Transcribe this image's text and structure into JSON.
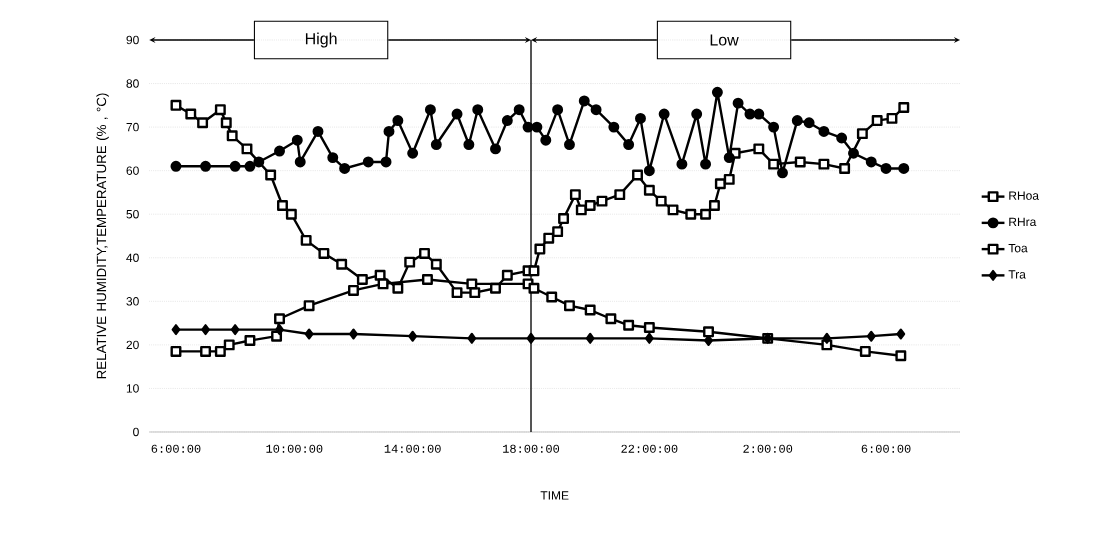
{
  "chart_data": {
    "type": "line",
    "xlabel": "TIME",
    "ylabel": "RELATIVE HUMIDITY,TEMPERATURE (% , °C)",
    "xlim": [
      "2000-01-01T05:06",
      "2000-01-02T08:30"
    ],
    "ylim": [
      0,
      90
    ],
    "xticks": [
      {
        "value": "2000-01-01T06:00",
        "label": "6:00:00"
      },
      {
        "value": "2000-01-01T10:00",
        "label": "10:00:00"
      },
      {
        "value": "2000-01-01T14:00",
        "label": "14:00:00"
      },
      {
        "value": "2000-01-01T18:00",
        "label": "18:00:00"
      },
      {
        "value": "2000-01-01T22:00",
        "label": "22:00:00"
      },
      {
        "value": "2000-01-02T02:00",
        "label": "2:00:00"
      },
      {
        "value": "2000-01-02T06:00",
        "label": "6:00:00"
      }
    ],
    "yticks": [
      0,
      10,
      20,
      30,
      40,
      50,
      60,
      70,
      80,
      90
    ],
    "grid": "y",
    "legend": "right",
    "line_style": "solid",
    "ref_lines": [
      {
        "axis": "x",
        "value": "2000-01-01T18:00",
        "color": "#000000"
      }
    ],
    "annotations": [
      "High",
      "Low"
    ],
    "series": [
      {
        "name": "RHoa",
        "color": "#000000",
        "marker": "square",
        "x": [
          "2000-01-01T06:00",
          "2000-01-01T06:30",
          "2000-01-01T06:54",
          "2000-01-01T07:30",
          "2000-01-01T07:42",
          "2000-01-01T07:54",
          "2000-01-01T08:24",
          "2000-01-01T09:12",
          "2000-01-01T09:36",
          "2000-01-01T09:54",
          "2000-01-01T10:24",
          "2000-01-01T11:00",
          "2000-01-01T11:36",
          "2000-01-01T12:18",
          "2000-01-01T12:54",
          "2000-01-01T13:30",
          "2000-01-01T13:54",
          "2000-01-01T14:24",
          "2000-01-01T14:48",
          "2000-01-01T15:30",
          "2000-01-01T16:06",
          "2000-01-01T16:48",
          "2000-01-01T17:12",
          "2000-01-01T17:54",
          "2000-01-01T18:06",
          "2000-01-01T18:18",
          "2000-01-01T18:36",
          "2000-01-01T18:54",
          "2000-01-01T19:06",
          "2000-01-01T19:30",
          "2000-01-01T19:42",
          "2000-01-01T20:00",
          "2000-01-01T20:24",
          "2000-01-01T21:00",
          "2000-01-01T21:36",
          "2000-01-01T22:00",
          "2000-01-01T22:24",
          "2000-01-01T22:48",
          "2000-01-01T23:24",
          "2000-01-01T23:54",
          "2000-01-02T00:12",
          "2000-01-02T00:24",
          "2000-01-02T00:42",
          "2000-01-02T00:54",
          "2000-01-02T01:42",
          "2000-01-02T02:12",
          "2000-01-02T03:06",
          "2000-01-02T03:54",
          "2000-01-02T04:36",
          "2000-01-02T05:12",
          "2000-01-02T05:42",
          "2000-01-02T06:12",
          "2000-01-02T06:36"
        ],
        "values": [
          75,
          73,
          71,
          74,
          71,
          68,
          65,
          59,
          52,
          50,
          44,
          41,
          38.5,
          35,
          36,
          33,
          39,
          41,
          38.5,
          32,
          32,
          33,
          36,
          37,
          37,
          42,
          44.5,
          46,
          49,
          54.5,
          51,
          52,
          53,
          54.5,
          59,
          55.5,
          53,
          51,
          50,
          50,
          52,
          57,
          58,
          64,
          65,
          61.5,
          62,
          61.5,
          60.5,
          68.5,
          71.5,
          72,
          74.5
        ]
      },
      {
        "name": "RHra",
        "color": "#000000",
        "marker": "circle",
        "x": [
          "2000-01-01T06:00",
          "2000-01-01T07:00",
          "2000-01-01T08:00",
          "2000-01-01T08:30",
          "2000-01-01T08:48",
          "2000-01-01T09:30",
          "2000-01-01T10:06",
          "2000-01-01T10:12",
          "2000-01-01T10:48",
          "2000-01-01T11:18",
          "2000-01-01T11:42",
          "2000-01-01T12:30",
          "2000-01-01T13:06",
          "2000-01-01T13:12",
          "2000-01-01T13:30",
          "2000-01-01T14:00",
          "2000-01-01T14:36",
          "2000-01-01T14:48",
          "2000-01-01T15:30",
          "2000-01-01T15:54",
          "2000-01-01T16:12",
          "2000-01-01T16:48",
          "2000-01-01T17:12",
          "2000-01-01T17:36",
          "2000-01-01T17:54",
          "2000-01-01T18:12",
          "2000-01-01T18:30",
          "2000-01-01T18:54",
          "2000-01-01T19:18",
          "2000-01-01T19:48",
          "2000-01-01T20:12",
          "2000-01-01T20:48",
          "2000-01-01T21:18",
          "2000-01-01T21:42",
          "2000-01-01T22:00",
          "2000-01-01T22:30",
          "2000-01-01T23:06",
          "2000-01-01T23:36",
          "2000-01-01T23:54",
          "2000-01-02T00:18",
          "2000-01-02T00:42",
          "2000-01-02T01:00",
          "2000-01-02T01:24",
          "2000-01-02T01:42",
          "2000-01-02T02:12",
          "2000-01-02T02:30",
          "2000-01-02T03:00",
          "2000-01-02T03:24",
          "2000-01-02T03:54",
          "2000-01-02T04:30",
          "2000-01-02T04:54",
          "2000-01-02T05:30",
          "2000-01-02T06:00",
          "2000-01-02T06:36"
        ],
        "values": [
          61,
          61,
          61,
          61,
          62,
          64.5,
          67,
          62,
          69,
          63,
          60.5,
          62,
          62,
          69,
          71.5,
          64,
          74,
          66,
          73,
          66,
          74,
          65,
          71.5,
          74,
          70,
          70,
          67,
          74,
          66,
          76,
          74,
          70,
          66,
          72,
          60,
          73,
          61.5,
          73,
          61.5,
          78,
          63,
          75.5,
          73,
          73,
          70,
          59.5,
          71.5,
          71,
          69,
          67.5,
          64,
          62,
          60.5,
          60.5
        ]
      },
      {
        "name": "Toa",
        "color": "#000000",
        "marker": "square",
        "x": [
          "2000-01-01T06:00",
          "2000-01-01T07:00",
          "2000-01-01T07:30",
          "2000-01-01T07:48",
          "2000-01-01T08:30",
          "2000-01-01T09:24",
          "2000-01-01T09:30",
          "2000-01-01T10:30",
          "2000-01-01T12:00",
          "2000-01-01T13:00",
          "2000-01-01T14:30",
          "2000-01-01T16:00",
          "2000-01-01T17:54",
          "2000-01-01T18:06",
          "2000-01-01T18:42",
          "2000-01-01T19:18",
          "2000-01-01T20:00",
          "2000-01-01T20:42",
          "2000-01-01T21:18",
          "2000-01-01T22:00",
          "2000-01-02T00:00",
          "2000-01-02T02:00",
          "2000-01-02T04:00",
          "2000-01-02T05:18",
          "2000-01-02T06:30"
        ],
        "values": [
          18.5,
          18.5,
          18.5,
          20,
          21,
          22,
          26,
          29,
          32.5,
          34,
          35,
          34,
          34,
          33,
          31,
          29,
          28,
          26,
          24.5,
          24,
          23,
          21.5,
          20,
          18.5,
          17.5
        ]
      },
      {
        "name": "Tra",
        "color": "#000000",
        "marker": "diamond",
        "x": [
          "2000-01-01T06:00",
          "2000-01-01T07:00",
          "2000-01-01T08:00",
          "2000-01-01T09:30",
          "2000-01-01T10:30",
          "2000-01-01T12:00",
          "2000-01-01T14:00",
          "2000-01-01T16:00",
          "2000-01-01T18:00",
          "2000-01-01T20:00",
          "2000-01-01T22:00",
          "2000-01-02T00:00",
          "2000-01-02T02:00",
          "2000-01-02T04:00",
          "2000-01-02T05:30",
          "2000-01-02T06:30"
        ],
        "values": [
          23.5,
          23.5,
          23.5,
          23.5,
          22.5,
          22.5,
          22,
          21.5,
          21.5,
          21.5,
          21.5,
          21,
          21.5,
          21.5,
          22,
          22.5
        ]
      }
    ]
  }
}
